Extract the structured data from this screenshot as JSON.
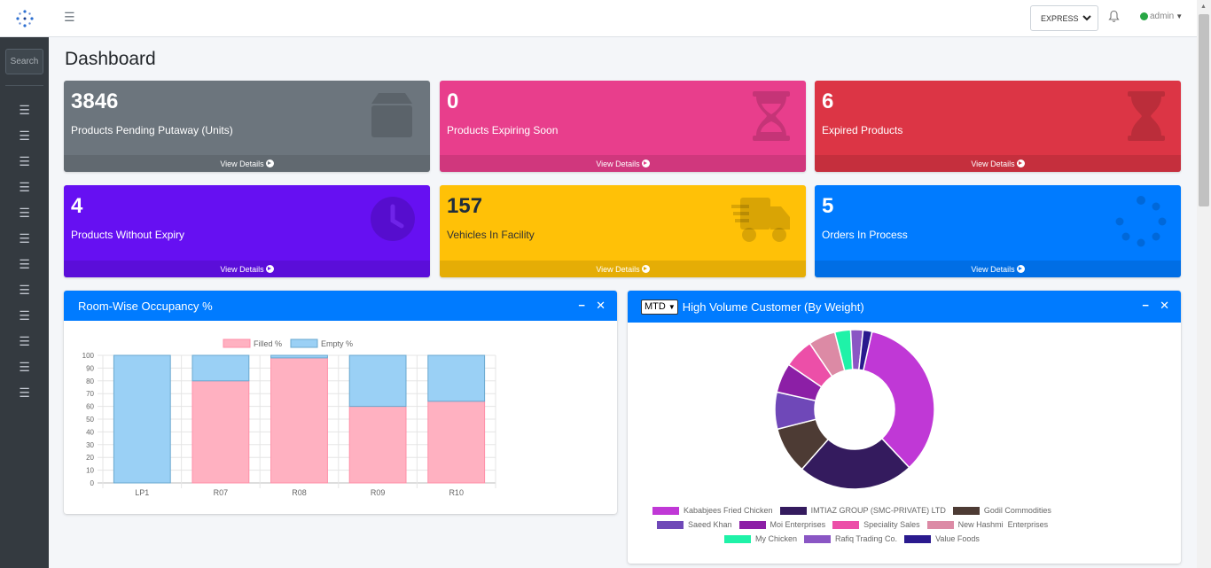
{
  "navbar": {
    "express": "EXPRESS",
    "user": "admin"
  },
  "sidebar": {
    "search_placeholder": "Search",
    "item_count": 12
  },
  "page": {
    "title": "Dashboard"
  },
  "boxes": [
    {
      "value": "3846",
      "label": "Products Pending Putaway (Units)",
      "footer": "View Details",
      "color": "#6c757d"
    },
    {
      "value": "0",
      "label": "Products Expiring Soon",
      "footer": "View Details",
      "color": "#e83e8c"
    },
    {
      "value": "6",
      "label": "Expired Products",
      "footer": "View Details",
      "color": "#dc3545"
    },
    {
      "value": "4",
      "label": "Products Without Expiry",
      "footer": "View Details",
      "color": "#6610f2"
    },
    {
      "value": "157",
      "label": "Vehicles In Facility",
      "footer": "View Details",
      "color": "#ffc107"
    },
    {
      "value": "5",
      "label": "Orders In Process",
      "footer": "View Details",
      "color": "#007bff"
    }
  ],
  "occupancy": {
    "title": "Room-Wise Occupancy %",
    "legend": [
      "Filled %",
      "Empty %"
    ],
    "yticks": [
      "100",
      "90",
      "80",
      "70",
      "60",
      "50",
      "40",
      "30",
      "20",
      "10",
      "0"
    ]
  },
  "customers": {
    "select_value": "MTD",
    "title": "High Volume Customer (By Weight)"
  },
  "chart_data": [
    {
      "type": "bar",
      "stacked": true,
      "categories": [
        "LP1",
        "R07",
        "R08",
        "R09",
        "R10"
      ],
      "series": [
        {
          "name": "Filled %",
          "values": [
            0,
            80,
            98,
            60,
            64
          ],
          "color": "#ffb1c1"
        },
        {
          "name": "Empty %",
          "values": [
            100,
            20,
            2,
            40,
            36
          ],
          "color": "#9ad0f5"
        }
      ],
      "ylim": [
        0,
        100
      ],
      "grid": true,
      "legend": "top"
    },
    {
      "type": "pie",
      "donut": true,
      "legend": "bottom",
      "series": [
        {
          "name": "Kababjees Fried Chicken",
          "value": 34.5,
          "color": "#c038d6"
        },
        {
          "name": "IMTIAZ GROUP (SMC-PRIVATE) LTD",
          "value": 23.5,
          "color": "#341b5e"
        },
        {
          "name": "Godil Commodities",
          "value": 9.5,
          "color": "#4d3b34"
        },
        {
          "name": "Saeed Khan",
          "value": 7.5,
          "color": "#6f48b8"
        },
        {
          "name": "Moi Enterprises",
          "value": 6.0,
          "color": "#8c1fa6"
        },
        {
          "name": "Speciality Sales",
          "value": 6.0,
          "color": "#ec4fa8"
        },
        {
          "name": "New Hashmi  Enterprises",
          "value": 5.5,
          "color": "#dc8aa5"
        },
        {
          "name": "My Chicken",
          "value": 3.2,
          "color": "#1ff2a8"
        },
        {
          "name": "Rafiq Trading Co.",
          "value": 2.5,
          "color": "#8a56c4"
        },
        {
          "name": "Value Foods",
          "value": 1.8,
          "color": "#2a1a8e"
        }
      ]
    }
  ]
}
